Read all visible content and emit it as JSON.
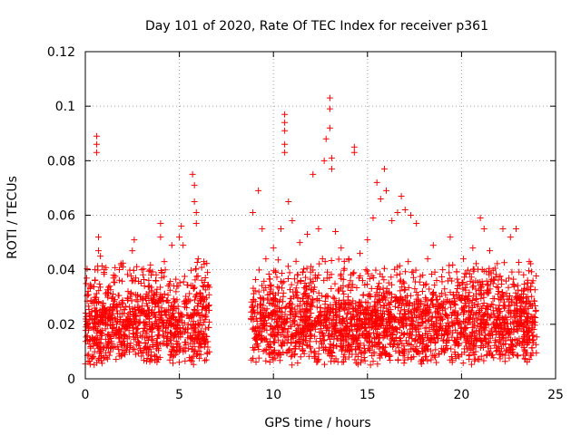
{
  "chart_data": {
    "type": "scatter",
    "title": "Day 101 of 2020, Rate Of TEC Index for receiver p361",
    "xlabel": "GPS time / hours",
    "ylabel": "ROTI / TECUs",
    "xlim": [
      0,
      25
    ],
    "ylim": [
      0,
      0.12
    ],
    "x_ticks": [
      0,
      5,
      10,
      15,
      20,
      25
    ],
    "x_tick_labels": [
      "0",
      "5",
      "10",
      "15",
      "20",
      "25"
    ],
    "y_ticks": [
      0,
      0.02,
      0.04,
      0.06,
      0.08,
      0.1,
      0.12
    ],
    "y_tick_labels": [
      "0",
      "0.02",
      "0.04",
      "0.06",
      "0.08",
      "0.1",
      "0.12"
    ],
    "grid": true,
    "marker": "plus",
    "color": "#ff0000",
    "data_segments": [
      {
        "x_range": [
          0.0,
          6.6
        ],
        "y_typical_range": [
          0.005,
          0.045
        ]
      },
      {
        "x_range": [
          8.8,
          24.0
        ],
        "y_typical_range": [
          0.005,
          0.045
        ]
      }
    ],
    "points": [
      [
        0.3,
        0.034
      ],
      [
        0.6,
        0.089
      ],
      [
        0.6,
        0.086
      ],
      [
        0.6,
        0.083
      ],
      [
        0.7,
        0.052
      ],
      [
        0.7,
        0.047
      ],
      [
        0.8,
        0.045
      ],
      [
        1.0,
        0.04
      ],
      [
        1.5,
        0.037
      ],
      [
        2.0,
        0.041
      ],
      [
        2.5,
        0.047
      ],
      [
        2.6,
        0.051
      ],
      [
        3.0,
        0.04
      ],
      [
        3.5,
        0.038
      ],
      [
        4.0,
        0.057
      ],
      [
        4.0,
        0.052
      ],
      [
        4.2,
        0.043
      ],
      [
        4.6,
        0.049
      ],
      [
        5.0,
        0.052
      ],
      [
        5.1,
        0.056
      ],
      [
        5.2,
        0.049
      ],
      [
        5.7,
        0.075
      ],
      [
        5.8,
        0.071
      ],
      [
        5.8,
        0.065
      ],
      [
        5.9,
        0.061
      ],
      [
        5.9,
        0.057
      ],
      [
        6.0,
        0.044
      ],
      [
        6.3,
        0.043
      ],
      [
        6.5,
        0.034
      ],
      [
        8.9,
        0.061
      ],
      [
        9.2,
        0.069
      ],
      [
        9.4,
        0.055
      ],
      [
        9.6,
        0.044
      ],
      [
        10.0,
        0.048
      ],
      [
        10.4,
        0.055
      ],
      [
        10.6,
        0.097
      ],
      [
        10.6,
        0.094
      ],
      [
        10.6,
        0.091
      ],
      [
        10.6,
        0.086
      ],
      [
        10.6,
        0.083
      ],
      [
        10.8,
        0.065
      ],
      [
        11.0,
        0.058
      ],
      [
        11.4,
        0.05
      ],
      [
        11.8,
        0.053
      ],
      [
        12.1,
        0.075
      ],
      [
        12.4,
        0.055
      ],
      [
        12.7,
        0.08
      ],
      [
        12.8,
        0.088
      ],
      [
        13.0,
        0.103
      ],
      [
        13.0,
        0.099
      ],
      [
        13.0,
        0.092
      ],
      [
        13.1,
        0.081
      ],
      [
        13.1,
        0.077
      ],
      [
        13.3,
        0.054
      ],
      [
        13.6,
        0.048
      ],
      [
        14.0,
        0.044
      ],
      [
        14.3,
        0.085
      ],
      [
        14.3,
        0.083
      ],
      [
        14.6,
        0.046
      ],
      [
        15.0,
        0.051
      ],
      [
        15.3,
        0.059
      ],
      [
        15.5,
        0.072
      ],
      [
        15.7,
        0.066
      ],
      [
        15.9,
        0.077
      ],
      [
        16.0,
        0.069
      ],
      [
        16.3,
        0.058
      ],
      [
        16.6,
        0.061
      ],
      [
        16.8,
        0.067
      ],
      [
        17.0,
        0.062
      ],
      [
        17.3,
        0.06
      ],
      [
        17.6,
        0.057
      ],
      [
        18.2,
        0.044
      ],
      [
        18.5,
        0.049
      ],
      [
        19.0,
        0.04
      ],
      [
        19.4,
        0.052
      ],
      [
        20.1,
        0.044
      ],
      [
        20.6,
        0.048
      ],
      [
        21.0,
        0.059
      ],
      [
        21.2,
        0.055
      ],
      [
        21.5,
        0.047
      ],
      [
        22.2,
        0.055
      ],
      [
        22.6,
        0.052
      ],
      [
        22.9,
        0.055
      ],
      [
        23.3,
        0.025
      ],
      [
        23.6,
        0.043
      ],
      [
        23.8,
        0.036
      ]
    ]
  }
}
